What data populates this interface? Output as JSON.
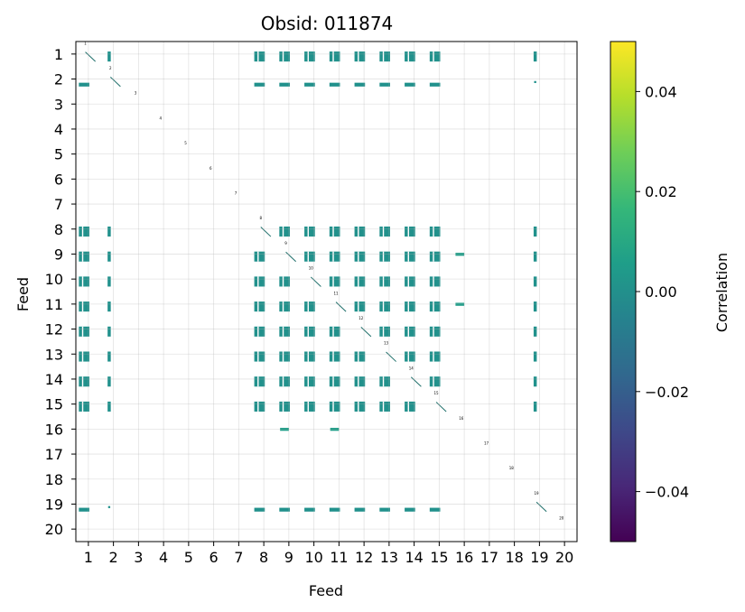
{
  "chart_data": {
    "type": "heatmap",
    "title": "Obsid: 011874",
    "xlabel": "Feed",
    "ylabel": "Feed",
    "feeds": [
      1,
      2,
      3,
      4,
      5,
      6,
      7,
      8,
      9,
      10,
      11,
      12,
      13,
      14,
      15,
      16,
      17,
      18,
      19,
      20
    ],
    "x_tick_labels": [
      "1",
      "2",
      "3",
      "4",
      "5",
      "6",
      "7",
      "8",
      "9",
      "10",
      "11",
      "12",
      "13",
      "14",
      "15",
      "16",
      "17",
      "18",
      "19",
      "20"
    ],
    "y_tick_labels": [
      "1",
      "2",
      "3",
      "4",
      "5",
      "6",
      "7",
      "8",
      "9",
      "10",
      "11",
      "12",
      "13",
      "14",
      "15",
      "16",
      "17",
      "18",
      "19",
      "20"
    ],
    "grid": true,
    "colorbar": {
      "label": "Correlation",
      "colormap": "viridis",
      "range": [
        -0.05,
        0.05
      ],
      "tick_values": [
        -0.04,
        -0.02,
        0.0,
        0.02,
        0.04
      ],
      "tick_labels": [
        "−0.04",
        "−0.02",
        "0.00",
        "0.02",
        "0.04"
      ],
      "colors": [
        "#440154",
        "#482878",
        "#3e4989",
        "#31688e",
        "#26828e",
        "#1f9e89",
        "#35b779",
        "#6ece58",
        "#b5de2b",
        "#fde725"
      ]
    },
    "block_color": "#21918c",
    "block_correlation_value": 0.0,
    "diagonal_labels": [
      "1",
      "2",
      "3",
      "4",
      "5",
      "6",
      "7",
      "8",
      "9",
      "10",
      "11",
      "12",
      "13",
      "14",
      "15",
      "16",
      "17",
      "18",
      "19",
      "20"
    ],
    "main_feeds": [
      1,
      2,
      8,
      9,
      10,
      11,
      12,
      13,
      14,
      15,
      19
    ],
    "dense_feeds": [
      1,
      8,
      9,
      10,
      11,
      12,
      13,
      14,
      15
    ],
    "sparse_feeds": [
      2,
      19
    ],
    "extra_cells": [
      {
        "row": 16,
        "col": 9,
        "value": 0.0
      },
      {
        "row": 16,
        "col": 11,
        "value": 0.0
      },
      {
        "row": 9,
        "col": 16,
        "value": 0.0
      },
      {
        "row": 11,
        "col": 16,
        "value": 0.0
      }
    ]
  }
}
